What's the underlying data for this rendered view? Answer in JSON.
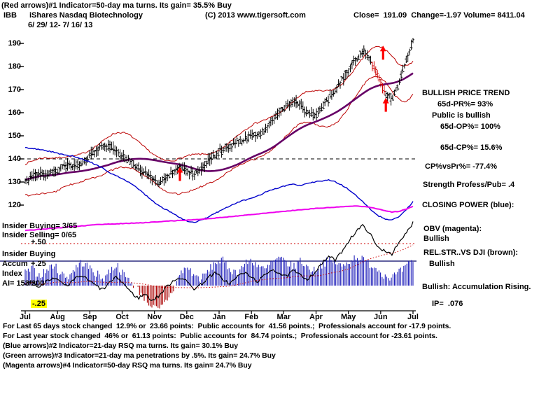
{
  "header": {
    "line1": "(Red arrows)#1 Indicator=50-day ma turns. Its gain= 35.5% Buy",
    "symbol": "IBB",
    "name": "iShares Nasdaq Biotechnology",
    "copyright": "(C) 2013 www.tigersoft.com",
    "quote": "Close=  191.09  Change=-1.97 Volume= 8411.04",
    "date_range": "6/ 29/ 12- 7/ 16/ 13"
  },
  "left_labels": {
    "insider_buying": "Insider Buying= 3/65",
    "insider_selling": "Insider Selling= 0/65",
    "plus50": "+.50",
    "insider_buying2": "Insider Buying",
    "accum": "Accum",
    "plus25": "+.25",
    "index": "Index",
    "ai": "AI= 153/200",
    "minus25": "-.25"
  },
  "right_panel": {
    "title": "BULLISH PRICE TREND",
    "pr": "65d-PR%= 93%",
    "public": "Public is bullish",
    "op": "65d-OP%= 100%",
    "cp": "65d-CP%= 15.6%",
    "cpvspr": "CP%vsPr%= -77.4%",
    "strength": "Strength Profess/Pub= .4",
    "closing_power": "CLOSING POWER (blue):",
    "obv_label": "OBV (magenta):",
    "obv_status": "Bullish",
    "relstr_label": "REL.STR..VS DJI (brown):",
    "relstr_status": "Bullish",
    "accum_status": "Bullish: Accumulation Rising.",
    "ip": "IP=  .076"
  },
  "footer": {
    "line1": "For Last 65 days stock changed  12.9% or  23.66 points:  Public accounts for  41.56 points.;  Professionals account for -17.9 points.",
    "line2": "For Last year stock changed  46% or  61.13 points:  Public accounts for  84.74 points.;  Professionals account for -23.61 points.",
    "line3": "(Blue arrows)#2 Indicator=21-day RSQ ma turns. Its gain= 30.1% Buy",
    "line4": "(Green arrows)#3 Indicator=21-day ma penetrations by .5%. Its gain= 24.7% Buy",
    "line5": "(Magenta arrows)#4 Indicator=50-day RSQ ma turns. Its gain= 24.7% Buy"
  },
  "chart_data": {
    "type": "candlestick",
    "title": "IBB iShares Nasdaq Biotechnology 6/29/12 - 7/16/13",
    "x_axis": {
      "labels": [
        "Jul",
        "Aug",
        "Sep",
        "Oct",
        "Nov",
        "Dec",
        "Jan",
        "Feb",
        "Mar",
        "Apr",
        "May",
        "Jun",
        "Jul"
      ]
    },
    "price_axis": {
      "ticks": [
        190,
        180,
        170,
        160,
        150,
        140,
        130,
        120
      ],
      "min": 110,
      "max": 196
    },
    "accum_axis": {
      "labels": [
        "+.50",
        "+.25",
        "-.25"
      ],
      "values": [
        0.5,
        0.25,
        -0.25
      ]
    },
    "reference_lines": {
      "price_dashed": 140,
      "accum_dotted": 0.5
    },
    "series": {
      "close": [
        131,
        132.5,
        134,
        133,
        134.5,
        136,
        137,
        136.5,
        138,
        140.5,
        143.5,
        146,
        145,
        143,
        141,
        138.5,
        136,
        133.5,
        131.5,
        129.5,
        132,
        135,
        136.5,
        135,
        133.5,
        136,
        139.5,
        142,
        144,
        145.5,
        147,
        148.5,
        150.5,
        150,
        152.5,
        156.5,
        160,
        163,
        165,
        163.5,
        160.5,
        158.5,
        162,
        166,
        170,
        174.5,
        179.5,
        183.5,
        186.5,
        183,
        176.5,
        169,
        166,
        172,
        183,
        191
      ],
      "closing_power": [
        145,
        144.5,
        144,
        143.5,
        143,
        142,
        141.5,
        141,
        140,
        139,
        137.5,
        136,
        134,
        132.5,
        131,
        129.5,
        127,
        124.5,
        122,
        119.5,
        118,
        116.5,
        114.5,
        113,
        112.5,
        113.5,
        115,
        116.5,
        118,
        119.5,
        121,
        122,
        123,
        124,
        125.5,
        126.5,
        127.5,
        128.5,
        129,
        128.5,
        129.5,
        130,
        130.5,
        131,
        130,
        128.5,
        126.5,
        124,
        121,
        118,
        115.5,
        114,
        113.5,
        115,
        118,
        121.5
      ],
      "obv": [
        109,
        109.2,
        109.5,
        109.7,
        110,
        110.2,
        110.5,
        110.7,
        111,
        111.2,
        111.5,
        111.7,
        111.8,
        111.9,
        112,
        112.2,
        112.3,
        112.4,
        112.6,
        112.8,
        113,
        113.2,
        113.4,
        113.5,
        113.7,
        113.9,
        114.1,
        114.4,
        114.7,
        115,
        115.3,
        115.6,
        115.9,
        116.2,
        116.5,
        116.8,
        117.1,
        117.4,
        117.7,
        118,
        118.2,
        118.5,
        118.7,
        118.9,
        119.1,
        119.3,
        119.5,
        119.6,
        119.4,
        119,
        118.4,
        117.6,
        117,
        117.3,
        118.2,
        119.5
      ],
      "accum_line": [
        0.02,
        0.05,
        -0.03,
        0.06,
        0.1,
        0.04,
        -0.02,
        0.08,
        0.12,
        0.06,
        0.0,
        -0.05,
        0.04,
        0.1,
        0.02,
        -0.08,
        -0.15,
        -0.1,
        -0.18,
        -0.12,
        -0.02,
        0.06,
        0.1,
        0.04,
        -0.04,
        0.02,
        0.1,
        0.15,
        0.08,
        0.02,
        0.1,
        0.16,
        0.1,
        0.05,
        0.12,
        0.2,
        0.15,
        0.1,
        0.18,
        0.12,
        0.08,
        0.15,
        0.25,
        0.35,
        0.3,
        0.42,
        0.55,
        0.65,
        0.72,
        0.6,
        0.45,
        0.42,
        0.38,
        0.5,
        0.62,
        0.75
      ],
      "accum_histogram": [
        0.15,
        0.2,
        0.12,
        0.18,
        0.25,
        0.15,
        0.1,
        0.2,
        0.28,
        0.22,
        0.15,
        0.08,
        0.18,
        0.25,
        0.12,
        0.05,
        -0.05,
        -0.15,
        -0.25,
        -0.3,
        -0.18,
        -0.05,
        0.15,
        0.22,
        0.12,
        0.08,
        0.18,
        0.28,
        0.3,
        0.2,
        0.15,
        0.25,
        0.3,
        0.25,
        0.18,
        0.28,
        0.32,
        0.28,
        0.22,
        0.3,
        0.22,
        0.18,
        0.25,
        0.3,
        0.28,
        0.22,
        0.3,
        0.35,
        0.3,
        0.25,
        0.2,
        0.12,
        0.1,
        0.15,
        0.22,
        0.3
      ]
    },
    "derived": {
      "band_offset": 6.8,
      "band_window": 20,
      "ma_window": 52
    },
    "arrows": [
      {
        "t": 0.399,
        "tip_price": 136.5,
        "color": "red"
      },
      {
        "t": 0.923,
        "tip_price": 189,
        "color": "red"
      },
      {
        "t": 0.93,
        "tip_price": 166.5,
        "color": "red"
      }
    ],
    "red_bar_range": [
      0.895,
      0.928
    ],
    "colors": {
      "price_bar": "#000000",
      "down_bar": "#cc0000",
      "band": "#bb0000",
      "ma50": "#660066",
      "closing_power": "#0000cc",
      "obv": "#ee00ee",
      "hist_pos": "#2222bb",
      "hist_neg": "#aa0000",
      "accum_line": "#000000",
      "accum_ma_dotted": "#cc0000",
      "arrow": "#ff0000",
      "panel_divider": "#000066"
    }
  }
}
